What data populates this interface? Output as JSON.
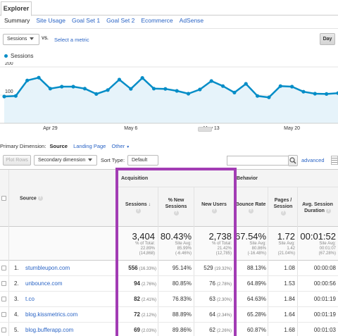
{
  "explorer_tab": "Explorer",
  "subtabs": [
    {
      "label": "Summary",
      "active": true
    },
    {
      "label": "Site Usage",
      "active": false
    },
    {
      "label": "Goal Set 1",
      "active": false
    },
    {
      "label": "Goal Set 2",
      "active": false
    },
    {
      "label": "Ecommerce",
      "active": false
    },
    {
      "label": "AdSense",
      "active": false
    }
  ],
  "metric_select": "Sessions",
  "vs_label": "VS.",
  "select_metric_link": "Select a metric",
  "day_button": "Day",
  "chart_data": {
    "type": "area",
    "legend": "Sessions",
    "series_color": "#058dc7",
    "fill_color": "#e6f3fa",
    "ylim": [
      0,
      200
    ],
    "yticks": [
      100,
      200
    ],
    "xtick_labels": [
      "Apr 29",
      "May 6",
      "May 13",
      "May 20"
    ],
    "x": [
      "Apr 25",
      "Apr 26",
      "Apr 27",
      "Apr 28",
      "Apr 29",
      "Apr 30",
      "May 1",
      "May 2",
      "May 3",
      "May 4",
      "May 5",
      "May 6",
      "May 7",
      "May 8",
      "May 9",
      "May 10",
      "May 11",
      "May 12",
      "May 13",
      "May 14",
      "May 15",
      "May 16",
      "May 17",
      "May 18",
      "May 19",
      "May 20",
      "May 21",
      "May 22",
      "May 23",
      "May 24"
    ],
    "values": [
      95,
      97,
      152,
      162,
      123,
      130,
      130,
      123,
      104,
      118,
      155,
      122,
      161,
      123,
      122,
      115,
      105,
      120,
      150,
      132,
      109,
      140,
      97,
      92,
      132,
      130,
      112,
      105,
      104,
      107
    ]
  },
  "primary_dimension": {
    "label": "Primary Dimension:",
    "selected": "Source",
    "options": [
      "Landing Page",
      "Other"
    ]
  },
  "toolbar": {
    "plot_rows": "Plot Rows",
    "secondary_dimension": "Secondary dimension",
    "sort_type_label": "Sort Type:",
    "sort_default": "Default",
    "search_value": "",
    "advanced": "advanced"
  },
  "table": {
    "acquisition_header": "Acquisition",
    "behavior_header": "Behavior",
    "source_header": "Source",
    "columns": [
      "Sessions",
      "% New Sessions",
      "New Users",
      "Bounce Rate",
      "Pages / Session",
      "Avg. Session Duration"
    ],
    "totals": [
      {
        "value": "3,404",
        "l1": "% of Total:",
        "l2": "22.89%",
        "l3": "(14,868)"
      },
      {
        "value": "80.43%",
        "l1": "Site Avg:",
        "l2": "85.99%",
        "l3": "(-6.46%)"
      },
      {
        "value": "2,738",
        "l1": "% of Total:",
        "l2": "21.42%",
        "l3": "(12,785)"
      },
      {
        "value": "67.54%",
        "l1": "Site Avg:",
        "l2": "80.86%",
        "l3": "(-16.48%)"
      },
      {
        "value": "1.72",
        "l1": "Site Avg:",
        "l2": "1.42",
        "l3": "(21.04%)"
      },
      {
        "value": "00:01:52",
        "l1": "Site Avg:",
        "l2": "00:01:07",
        "l3": "(67.28%)"
      }
    ],
    "rows": [
      {
        "idx": "1.",
        "source": "stumbleupon.com",
        "sessions": "556",
        "sessions_pct": "(16.33%)",
        "new_pct": "95.14%",
        "new_users": "529",
        "new_users_pct": "(19.32%)",
        "bounce": "88.13%",
        "pages": "1.08",
        "duration": "00:00:08"
      },
      {
        "idx": "2.",
        "source": "unbounce.com",
        "sessions": "94",
        "sessions_pct": "(2.76%)",
        "new_pct": "80.85%",
        "new_users": "76",
        "new_users_pct": "(2.78%)",
        "bounce": "64.89%",
        "pages": "1.53",
        "duration": "00:00:56"
      },
      {
        "idx": "3.",
        "source": "t.co",
        "sessions": "82",
        "sessions_pct": "(2.41%)",
        "new_pct": "76.83%",
        "new_users": "63",
        "new_users_pct": "(2.30%)",
        "bounce": "64.63%",
        "pages": "1.84",
        "duration": "00:01:19"
      },
      {
        "idx": "4.",
        "source": "blog.kissmetrics.com",
        "sessions": "72",
        "sessions_pct": "(2.12%)",
        "new_pct": "88.89%",
        "new_users": "64",
        "new_users_pct": "(2.34%)",
        "bounce": "65.28%",
        "pages": "1.64",
        "duration": "00:01:19"
      },
      {
        "idx": "5.",
        "source": "blog.bufferapp.com",
        "sessions": "69",
        "sessions_pct": "(2.03%)",
        "new_pct": "89.86%",
        "new_users": "62",
        "new_users_pct": "(2.26%)",
        "bounce": "60.87%",
        "pages": "1.68",
        "duration": "00:01:03"
      }
    ]
  },
  "highlight_color": "#a23cb4"
}
